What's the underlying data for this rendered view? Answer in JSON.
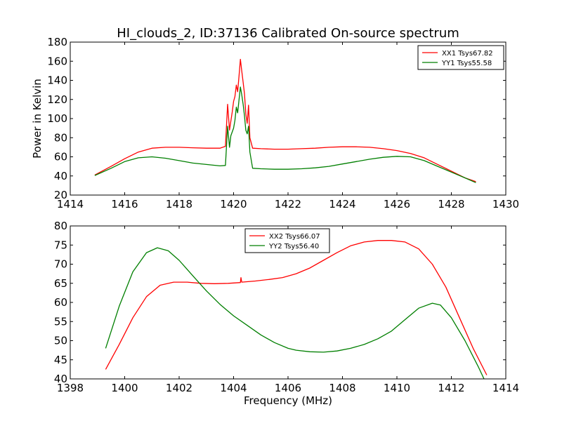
{
  "figure": {
    "title": "HI_clouds_2, ID:37136 Calibrated On-source spectrum"
  },
  "colors": {
    "red": "#ff0000",
    "green": "#007f00"
  },
  "chart_data": [
    {
      "type": "line",
      "title": "HI_clouds_2, ID:37136 Calibrated On-source spectrum",
      "xlabel": "",
      "ylabel": "Power in Kelvin",
      "xlim": [
        1414,
        1430
      ],
      "ylim": [
        20,
        180
      ],
      "xticks": [
        "1414",
        "1416",
        "1418",
        "1420",
        "1422",
        "1424",
        "1426",
        "1428",
        "1430"
      ],
      "yticks": [
        "20",
        "40",
        "60",
        "80",
        "100",
        "120",
        "140",
        "160",
        "180"
      ],
      "xtick_values": [
        1414,
        1416,
        1418,
        1420,
        1422,
        1424,
        1426,
        1428,
        1430
      ],
      "ytick_values": [
        20,
        40,
        60,
        80,
        100,
        120,
        140,
        160,
        180
      ],
      "legend_position": "top-right",
      "series": [
        {
          "name": "XX1 Tsys67.82",
          "color": "#ff0000",
          "x": [
            1414.9,
            1415.5,
            1416.0,
            1416.5,
            1417.0,
            1417.5,
            1418.0,
            1418.5,
            1419.0,
            1419.5,
            1419.7,
            1419.78,
            1419.85,
            1419.95,
            1420.0,
            1420.05,
            1420.1,
            1420.15,
            1420.2,
            1420.25,
            1420.3,
            1420.35,
            1420.4,
            1420.45,
            1420.5,
            1420.55,
            1420.6,
            1420.7,
            1421.0,
            1421.5,
            1422.0,
            1422.5,
            1423.0,
            1423.5,
            1424.0,
            1424.5,
            1425.0,
            1425.5,
            1426.0,
            1426.5,
            1427.0,
            1427.5,
            1428.0,
            1428.5,
            1428.9
          ],
          "y": [
            41,
            50,
            58,
            65,
            69,
            70,
            70,
            69.5,
            69,
            69,
            71,
            115,
            88,
            107,
            118,
            123,
            135,
            128,
            145,
            162,
            150,
            138,
            126,
            105,
            95,
            114,
            80,
            69,
            68.5,
            68,
            68,
            68.5,
            69,
            70,
            70.5,
            70.5,
            70,
            68.5,
            66.5,
            63.5,
            59,
            52,
            45,
            38,
            34
          ]
        },
        {
          "name": "YY1 Tsys55.58",
          "color": "#007f00",
          "x": [
            1414.9,
            1415.5,
            1416.0,
            1416.5,
            1417.0,
            1417.5,
            1418.0,
            1418.5,
            1419.0,
            1419.5,
            1419.7,
            1419.78,
            1419.85,
            1419.9,
            1420.0,
            1420.05,
            1420.1,
            1420.15,
            1420.2,
            1420.25,
            1420.3,
            1420.35,
            1420.4,
            1420.45,
            1420.5,
            1420.55,
            1420.6,
            1420.7,
            1421.0,
            1421.5,
            1422.0,
            1422.5,
            1423.0,
            1423.5,
            1424.0,
            1424.5,
            1425.0,
            1425.5,
            1426.0,
            1426.5,
            1427.0,
            1427.5,
            1428.0,
            1428.5,
            1428.9
          ],
          "y": [
            40.5,
            48,
            55,
            59,
            60,
            58.5,
            56,
            53.5,
            52,
            50.5,
            51,
            92,
            70,
            82,
            90,
            98,
            112,
            106,
            120,
            133,
            125,
            115,
            103,
            88,
            84,
            92,
            65,
            48,
            47.5,
            47,
            47,
            47.5,
            48.5,
            50,
            52.5,
            55,
            57.5,
            59.5,
            60.5,
            60,
            56,
            50,
            44,
            38,
            33
          ]
        }
      ]
    },
    {
      "type": "line",
      "title": "",
      "xlabel": "Frequency (MHz)",
      "ylabel": "",
      "xlim": [
        1398,
        1414
      ],
      "ylim": [
        40,
        80
      ],
      "xticks": [
        "1398",
        "1400",
        "1402",
        "1404",
        "1406",
        "1408",
        "1410",
        "1412",
        "1414"
      ],
      "yticks": [
        "40",
        "45",
        "50",
        "55",
        "60",
        "65",
        "70",
        "75",
        "80"
      ],
      "xtick_values": [
        1398,
        1400,
        1402,
        1404,
        1406,
        1408,
        1410,
        1412,
        1414
      ],
      "ytick_values": [
        40,
        45,
        50,
        55,
        60,
        65,
        70,
        75,
        80
      ],
      "legend_position": "upper-center",
      "series": [
        {
          "name": "XX2 Tsys66.07",
          "color": "#ff0000",
          "x": [
            1399.3,
            1399.8,
            1400.3,
            1400.8,
            1401.3,
            1401.8,
            1402.3,
            1402.8,
            1403.3,
            1403.8,
            1404.25,
            1404.27,
            1404.3,
            1404.8,
            1405.3,
            1405.8,
            1406.3,
            1406.8,
            1407.3,
            1407.8,
            1408.3,
            1408.8,
            1409.3,
            1409.8,
            1410.3,
            1410.8,
            1411.3,
            1411.8,
            1412.3,
            1412.8,
            1413.3
          ],
          "y": [
            42.5,
            49,
            56,
            61.5,
            64.5,
            65.3,
            65.3,
            65,
            64.9,
            65,
            65.2,
            66.5,
            65.3,
            65.6,
            66,
            66.5,
            67.5,
            69,
            71,
            73,
            74.8,
            75.8,
            76.2,
            76.2,
            75.8,
            74,
            70,
            64,
            56,
            48,
            41
          ]
        },
        {
          "name": "YY2 Tsys56.40",
          "color": "#007f00",
          "x": [
            1399.3,
            1399.8,
            1400.3,
            1400.8,
            1401.2,
            1401.6,
            1402.0,
            1402.5,
            1403.0,
            1403.5,
            1404.0,
            1404.5,
            1405.0,
            1405.5,
            1406.0,
            1406.3,
            1406.8,
            1407.3,
            1407.8,
            1408.3,
            1408.8,
            1409.3,
            1409.8,
            1410.3,
            1410.8,
            1411.3,
            1411.6,
            1412.0,
            1412.5,
            1413.0,
            1413.2
          ],
          "y": [
            48,
            59,
            68,
            73,
            74.3,
            73.5,
            71,
            67,
            63,
            59.5,
            56.5,
            54,
            51.5,
            49.5,
            48,
            47.5,
            47.1,
            47,
            47.3,
            48,
            49,
            50.5,
            52.5,
            55.5,
            58.5,
            59.8,
            59.3,
            56,
            50,
            43,
            40
          ]
        }
      ]
    }
  ]
}
